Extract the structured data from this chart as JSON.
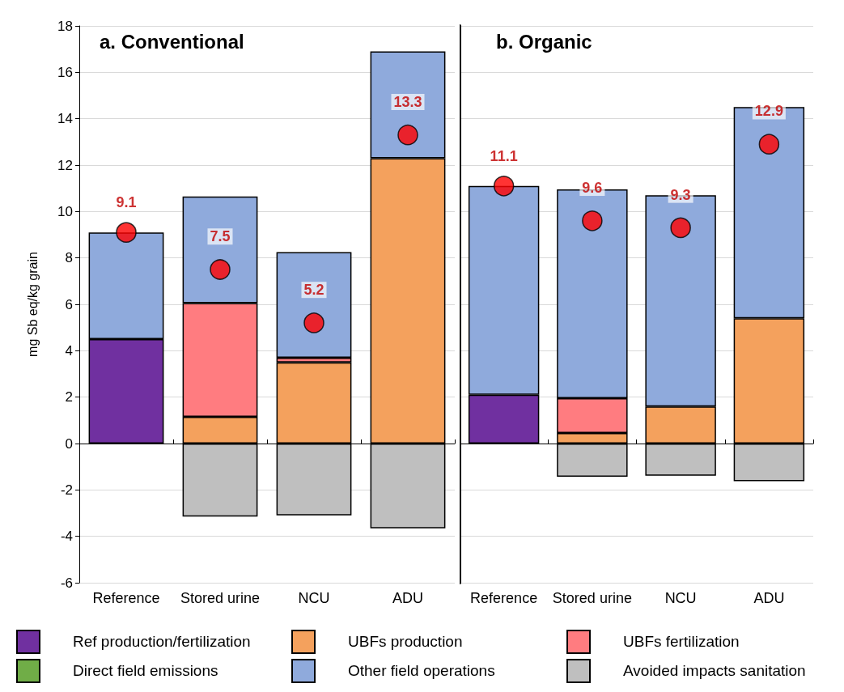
{
  "chart_data": [
    {
      "type": "bar",
      "title": "a. Conventional",
      "ylabel": "mg Sb eq/kg grain",
      "categories": [
        "Reference",
        "Stored urine",
        "NCU",
        "ADU"
      ],
      "stacked": true,
      "ylim": [
        -6,
        18
      ],
      "yticks": [
        -6,
        -4,
        -2,
        0,
        2,
        4,
        6,
        8,
        10,
        12,
        14,
        16,
        18
      ],
      "grid": "y",
      "legend": "bottom",
      "series": [
        {
          "name": "Ref production/fertilization",
          "color": "#7030a0",
          "values": [
            4.5,
            null,
            null,
            null
          ]
        },
        {
          "name": "UBFs production",
          "color": "#f4a15d",
          "values": [
            null,
            1.15,
            3.5,
            12.3
          ]
        },
        {
          "name": "UBFs fertilization",
          "color": "#ff7c80",
          "values": [
            null,
            4.9,
            0.2,
            null
          ]
        },
        {
          "name": "Direct field emissions",
          "color": "#70ad47",
          "values": [
            null,
            null,
            null,
            null
          ]
        },
        {
          "name": "Other field operations",
          "color": "#8faadc",
          "values": [
            4.6,
            4.6,
            4.55,
            4.6
          ]
        },
        {
          "name": "Avoided impacts sanitation",
          "color": "#bfbfbf",
          "values": [
            null,
            -3.15,
            -3.1,
            -3.65
          ]
        },
        {
          "type": "scatter",
          "color": "#ff0000",
          "x": [
            "Reference",
            "Stored urine",
            "NCU",
            "ADU"
          ],
          "values": [
            9.1,
            7.5,
            5.2,
            13.3
          ],
          "value_labels": [
            "9.1",
            "7.5",
            "5.2",
            "13.3"
          ]
        }
      ]
    },
    {
      "type": "bar",
      "title": "b. Organic",
      "categories": [
        "Reference",
        "Stored urine",
        "NCU",
        "ADU"
      ],
      "stacked": true,
      "ylim": [
        -6,
        18
      ],
      "yticks": [
        -6,
        -4,
        -2,
        0,
        2,
        4,
        6,
        8,
        10,
        12,
        14,
        16,
        18
      ],
      "grid": "y",
      "tick_labels": "x",
      "series": [
        {
          "color": "#7030a0",
          "values": [
            2.1,
            null,
            null,
            null
          ]
        },
        {
          "color": "#f4a15d",
          "values": [
            null,
            0.45,
            1.6,
            5.4
          ]
        },
        {
          "color": "#ff7c80",
          "values": [
            null,
            1.5,
            null,
            null
          ]
        },
        {
          "color": "#8faadc",
          "values": [
            9.0,
            9.0,
            9.1,
            9.1
          ]
        },
        {
          "color": "#bfbfbf",
          "values": [
            null,
            -1.43,
            -1.39,
            -1.62
          ]
        },
        {
          "type": "scatter",
          "color": "#ff0000",
          "x": [
            "Reference",
            "Stored urine",
            "NCU",
            "ADU"
          ],
          "values": [
            11.1,
            9.6,
            9.3,
            12.9
          ],
          "value_labels": [
            "11.1",
            "9.6",
            "9.3",
            "12.9"
          ]
        }
      ]
    }
  ]
}
